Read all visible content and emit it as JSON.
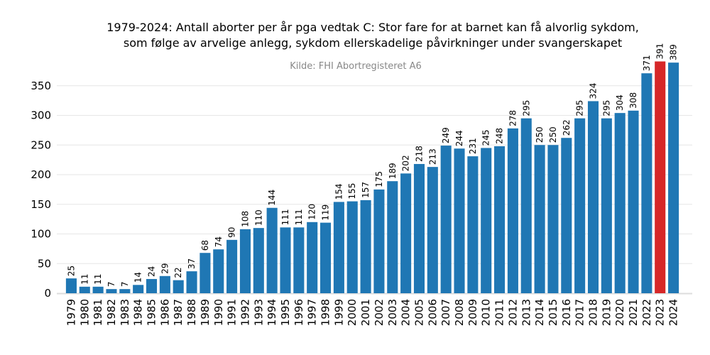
{
  "chart_data": {
    "type": "bar",
    "title": [
      "1979-2024: Antall aborter per år pga vedtak C: Stor fare for at barnet kan få alvorlig sykdom,",
      "som følge av arvelige anlegg, sykdom ellerskadelige påvirkninger under svangerskapet"
    ],
    "subtitle": "Kilde: FHI Abortregisteret A6",
    "categories": [
      "1979",
      "1980",
      "1981",
      "1982",
      "1983",
      "1984",
      "1985",
      "1986",
      "1987",
      "1988",
      "1989",
      "1990",
      "1991",
      "1992",
      "1993",
      "1994",
      "1995",
      "1996",
      "1997",
      "1998",
      "1999",
      "2000",
      "2001",
      "2002",
      "2003",
      "2004",
      "2005",
      "2006",
      "2007",
      "2008",
      "2009",
      "2010",
      "2011",
      "2012",
      "2013",
      "2014",
      "2015",
      "2016",
      "2017",
      "2018",
      "2019",
      "2020",
      "2021",
      "2022",
      "2023",
      "2024"
    ],
    "values": [
      25,
      11,
      11,
      7,
      7,
      14,
      24,
      29,
      22,
      37,
      68,
      74,
      90,
      108,
      110,
      144,
      111,
      111,
      120,
      119,
      154,
      155,
      157,
      175,
      189,
      202,
      218,
      213,
      249,
      244,
      231,
      245,
      248,
      278,
      295,
      250,
      250,
      262,
      295,
      324,
      295,
      304,
      308,
      371,
      391,
      389
    ],
    "colors": [
      "#1f77b4",
      "#1f77b4",
      "#1f77b4",
      "#1f77b4",
      "#1f77b4",
      "#1f77b4",
      "#1f77b4",
      "#1f77b4",
      "#1f77b4",
      "#1f77b4",
      "#1f77b4",
      "#1f77b4",
      "#1f77b4",
      "#1f77b4",
      "#1f77b4",
      "#1f77b4",
      "#1f77b4",
      "#1f77b4",
      "#1f77b4",
      "#1f77b4",
      "#1f77b4",
      "#1f77b4",
      "#1f77b4",
      "#1f77b4",
      "#1f77b4",
      "#1f77b4",
      "#1f77b4",
      "#1f77b4",
      "#1f77b4",
      "#1f77b4",
      "#1f77b4",
      "#1f77b4",
      "#1f77b4",
      "#1f77b4",
      "#1f77b4",
      "#1f77b4",
      "#1f77b4",
      "#1f77b4",
      "#1f77b4",
      "#1f77b4",
      "#1f77b4",
      "#1f77b4",
      "#1f77b4",
      "#1f77b4",
      "#d62728",
      "#1f77b4"
    ],
    "ylim": [
      0,
      400
    ],
    "yticks": [
      0,
      50,
      100,
      150,
      200,
      250,
      300,
      350
    ],
    "grid": true
  }
}
